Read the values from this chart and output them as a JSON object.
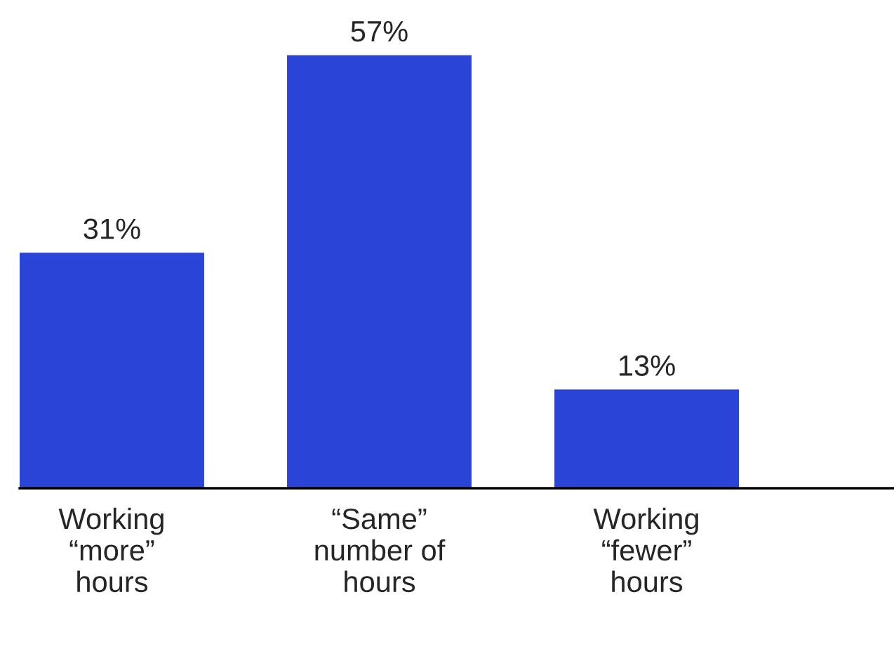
{
  "chart_data": {
    "type": "bar",
    "categories": [
      "Working\n“more”\nhours",
      "“Same”\nnumber of\nhours",
      "Working\n“fewer”\nhours"
    ],
    "values": [
      31,
      57,
      13
    ],
    "value_labels": [
      "31%",
      "57%",
      "13%"
    ],
    "color": "#2a44d8",
    "grid": false,
    "legend": false
  }
}
